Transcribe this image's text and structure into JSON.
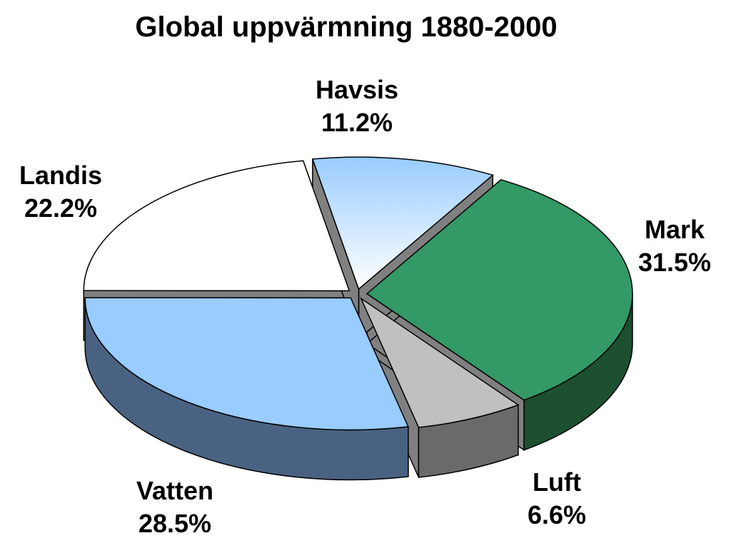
{
  "chart_data": {
    "type": "pie",
    "title": "Global uppvärmning 1880-2000",
    "slices": [
      {
        "label": "Havsis",
        "value": 11.2,
        "value_label": "11.2%",
        "color": "#99ccff"
      },
      {
        "label": "Mark",
        "value": 31.5,
        "value_label": "31.5%",
        "color": "#339966"
      },
      {
        "label": "Luft",
        "value": 6.6,
        "value_label": "6.6%",
        "color": "#c0c0c0"
      },
      {
        "label": "Vatten",
        "value": 28.5,
        "value_label": "28.5%",
        "color": "#99ccff"
      },
      {
        "label": "Landis",
        "value": 22.2,
        "value_label": "22.2%",
        "color": "#ffffff"
      }
    ],
    "legend": "none",
    "style": "3d-exploded"
  }
}
